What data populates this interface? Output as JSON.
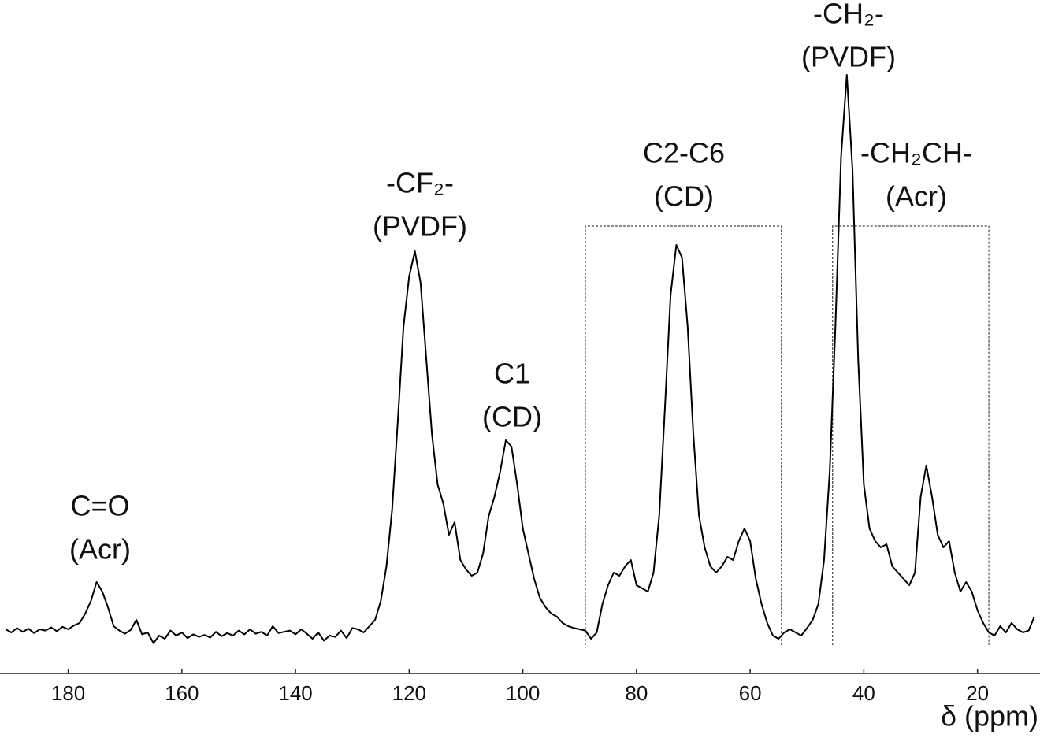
{
  "chart_data": {
    "type": "line",
    "x_label": "δ (ppm)",
    "xlim": [
      192,
      9
    ],
    "ylim": [
      0,
      100
    ],
    "xticks": [
      180,
      160,
      140,
      120,
      100,
      80,
      60,
      40,
      20
    ],
    "color": "#000000",
    "x": [
      191,
      190,
      189,
      188,
      187,
      186,
      185,
      184,
      183,
      182,
      181,
      180,
      179,
      178,
      177,
      176,
      175,
      174,
      173,
      172,
      171,
      170,
      169,
      168,
      167,
      166,
      165,
      164,
      163,
      162,
      161,
      160,
      159,
      158,
      157,
      156,
      155,
      154,
      153,
      152,
      151,
      150,
      149,
      148,
      147,
      146,
      145,
      144,
      143,
      142,
      141,
      140,
      139,
      138,
      137,
      136,
      135,
      134,
      133,
      132,
      131,
      130,
      129,
      128,
      127,
      126,
      125,
      124,
      123,
      122,
      121,
      120,
      119,
      118,
      117,
      116,
      115,
      114,
      113,
      112,
      111,
      110,
      109,
      108,
      107,
      106,
      105,
      104,
      103,
      102,
      101,
      100,
      99,
      98,
      97,
      96,
      95,
      94,
      93,
      92,
      91,
      90,
      89,
      88,
      87,
      86,
      85,
      84,
      83,
      82,
      81,
      80,
      79,
      78,
      77,
      76,
      75,
      74,
      73,
      72,
      71,
      70,
      69,
      68,
      67,
      66,
      65,
      64,
      63,
      62,
      61,
      60,
      59,
      58,
      57,
      56,
      55,
      54,
      53,
      52,
      51,
      50,
      49,
      48,
      47,
      46,
      45,
      44,
      43,
      42,
      41,
      40,
      39,
      38,
      37,
      36,
      35,
      34,
      33,
      32,
      31,
      30,
      29,
      28,
      27,
      26,
      25,
      24,
      23,
      22,
      21,
      20,
      19,
      18,
      17,
      16,
      15,
      14,
      13,
      12,
      11,
      10
    ],
    "values": [
      7.0,
      6.5,
      7.2,
      6.6,
      7.1,
      6.4,
      7.0,
      6.8,
      7.3,
      6.7,
      7.4,
      7.0,
      7.6,
      8.0,
      9.5,
      11.5,
      14.5,
      13.0,
      10.5,
      7.5,
      6.8,
      6.3,
      6.9,
      8.5,
      6.2,
      6.5,
      4.8,
      6.0,
      5.5,
      6.8,
      6.0,
      6.5,
      5.6,
      6.2,
      5.8,
      6.1,
      5.7,
      6.6,
      5.9,
      6.4,
      6.0,
      6.8,
      6.2,
      7.0,
      6.3,
      6.6,
      6.0,
      7.5,
      6.4,
      6.6,
      6.8,
      6.2,
      7.0,
      6.3,
      5.5,
      6.5,
      5.2,
      6.0,
      5.8,
      6.8,
      5.6,
      7.2,
      7.0,
      6.5,
      7.5,
      8.5,
      11.5,
      17,
      26,
      40,
      55,
      63,
      67,
      62,
      50,
      38,
      30,
      27,
      22,
      24,
      18,
      16.5,
      15.5,
      16,
      19,
      25,
      28,
      32,
      37,
      36,
      30,
      23,
      19,
      15,
      12,
      10.5,
      9.5,
      9,
      8,
      7.5,
      7.2,
      7.0,
      6.8,
      5.5,
      6.5,
      11,
      14,
      16,
      15.5,
      17,
      18,
      14,
      13.5,
      13,
      16,
      25,
      42,
      60,
      68,
      66,
      55,
      38,
      25,
      20,
      17,
      16,
      17,
      18.5,
      18,
      21,
      23,
      21,
      15,
      11,
      8,
      6,
      5.5,
      6.5,
      7.0,
      6.5,
      6.0,
      7.2,
      8.5,
      11,
      18,
      32,
      55,
      82,
      95,
      80,
      50,
      30,
      23,
      21,
      20,
      20.5,
      17,
      16,
      15,
      14,
      16,
      28,
      33,
      28,
      22,
      20,
      21,
      16,
      13,
      14.5,
      13,
      10,
      8,
      6.5,
      6,
      7.5,
      6.5,
      8,
      7,
      6.5,
      6.8,
      9
    ],
    "brackets": [
      {
        "x0": 89,
        "x1": 54.5,
        "top": 71,
        "bottom": 4.5
      },
      {
        "x0": 45.5,
        "x1": 18,
        "top": 71,
        "bottom": 4.5
      }
    ],
    "annotations": [
      [
        "C=O",
        "(Acr)"
      ],
      [
        "-CF₂-",
        "(PVDF)"
      ],
      [
        "C1",
        "(CD)"
      ],
      [
        "C2-C6",
        "(CD)"
      ],
      [
        "-CH₂-",
        "(PVDF)"
      ],
      [
        "-CH₂CH-",
        "(Acr)"
      ]
    ]
  }
}
